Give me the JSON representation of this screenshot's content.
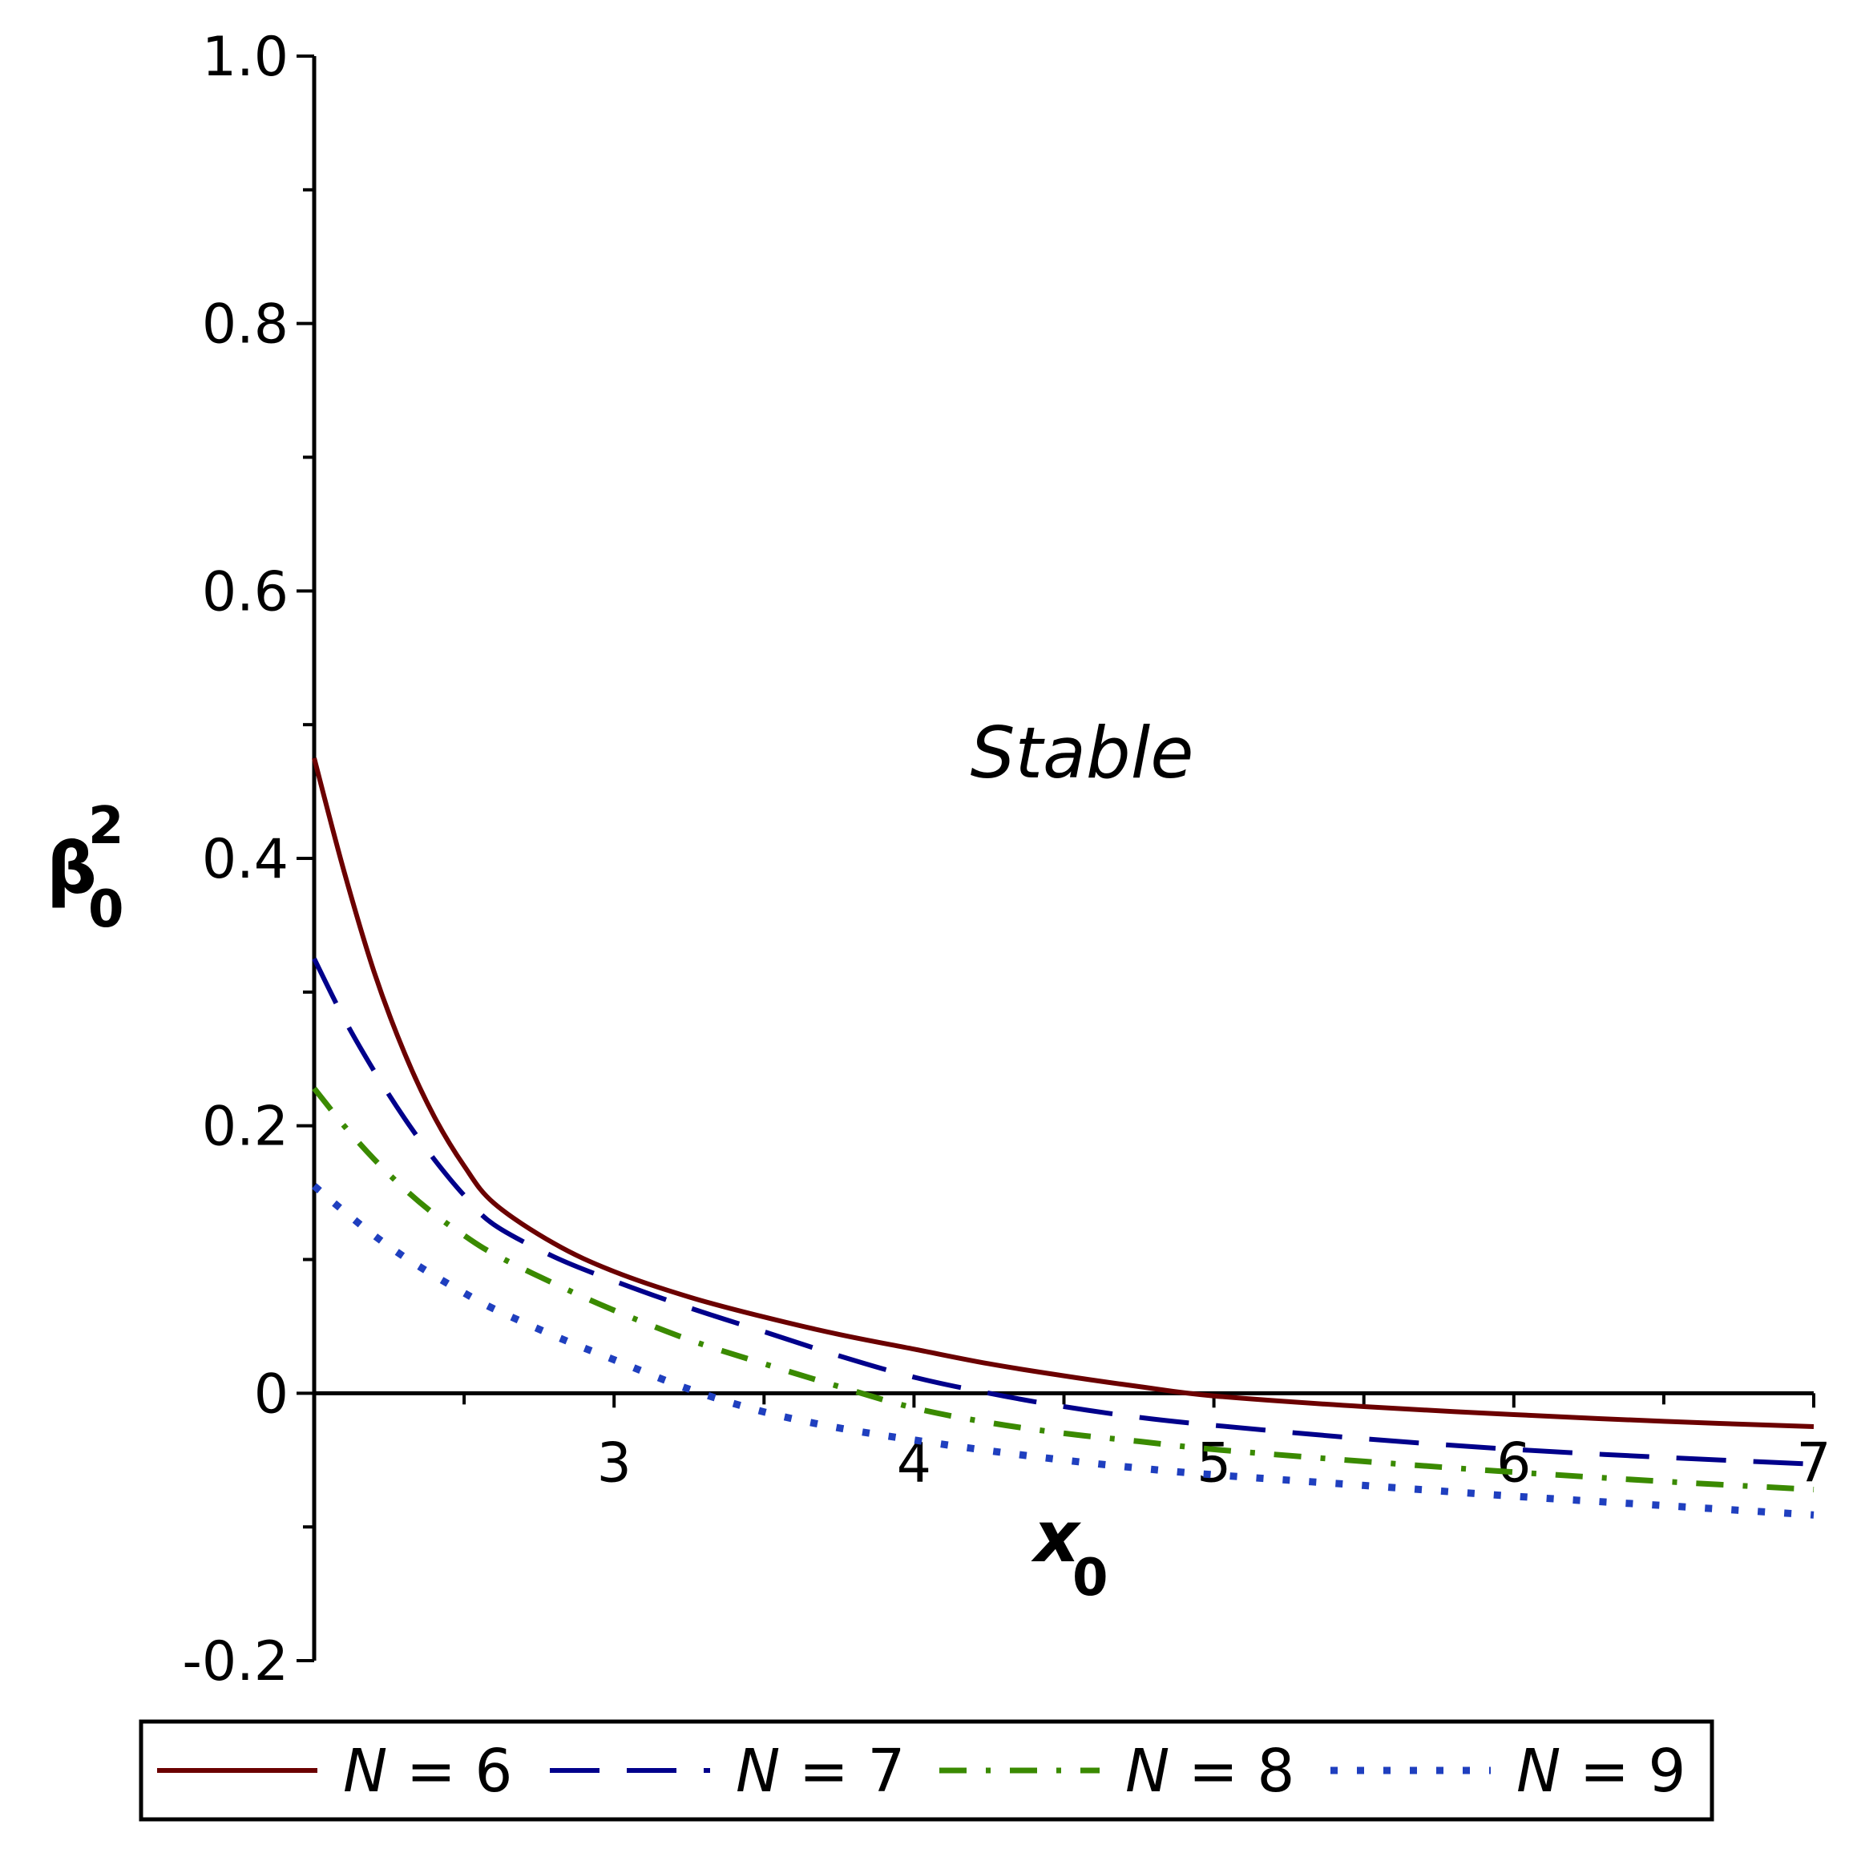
{
  "chart_data": {
    "type": "line",
    "xlabel": "x",
    "xlabel_sub": "0",
    "ylabel": "β",
    "ylabel_sup": "2",
    "ylabel_sub": "0",
    "xlim": [
      2.0,
      7.0
    ],
    "ylim": [
      -0.2,
      1.0
    ],
    "x_ticks": [
      3,
      4,
      5,
      6,
      7
    ],
    "x_ticks_minor": [
      2.5,
      3.5,
      4.5,
      5.5,
      6.5
    ],
    "y_ticks": [
      {
        "value": -0.2,
        "label": "-0.2"
      },
      {
        "value": 0,
        "label": "0"
      },
      {
        "value": 0.2,
        "label": "0.2"
      },
      {
        "value": 0.4,
        "label": "0.4"
      },
      {
        "value": 0.6,
        "label": "0.6"
      },
      {
        "value": 0.8,
        "label": "0.8"
      },
      {
        "value": 1.0,
        "label": "1.0"
      }
    ],
    "y_ticks_minor": [
      -0.1,
      0.1,
      0.3,
      0.5,
      0.7,
      0.9
    ],
    "grid": false,
    "legend_position": "bottom",
    "annotation": "Stable",
    "series": [
      {
        "name": "N = 6",
        "color": "#6b0000",
        "style": "solid",
        "x": [
          2.0,
          2.1,
          2.2,
          2.3,
          2.4,
          2.5,
          2.6,
          2.8,
          3.0,
          3.25,
          3.5,
          3.75,
          4.0,
          4.25,
          4.5,
          4.75,
          5.0,
          5.5,
          6.0,
          6.5,
          7.0
        ],
        "y": [
          0.475,
          0.39,
          0.315,
          0.255,
          0.207,
          0.17,
          0.142,
          0.112,
          0.091,
          0.072,
          0.057,
          0.044,
          0.033,
          0.022,
          0.013,
          0.005,
          -0.002,
          -0.01,
          -0.016,
          -0.021,
          -0.025
        ]
      },
      {
        "name": "N = 7",
        "color": "#00008b",
        "style": "longdash",
        "x": [
          2.0,
          2.1,
          2.2,
          2.3,
          2.4,
          2.5,
          2.6,
          2.8,
          3.0,
          3.25,
          3.5,
          3.75,
          4.0,
          4.25,
          4.5,
          4.75,
          5.0,
          5.5,
          6.0,
          6.5,
          7.0
        ],
        "y": [
          0.325,
          0.28,
          0.241,
          0.206,
          0.175,
          0.148,
          0.126,
          0.102,
          0.084,
          0.064,
          0.046,
          0.028,
          0.012,
          0.0,
          -0.01,
          -0.018,
          -0.024,
          -0.034,
          -0.042,
          -0.048,
          -0.053
        ]
      },
      {
        "name": "N = 8",
        "color": "#3a8a00",
        "style": "dashdot",
        "x": [
          2.0,
          2.1,
          2.2,
          2.3,
          2.4,
          2.5,
          2.6,
          2.8,
          3.0,
          3.25,
          3.5,
          3.75,
          4.0,
          4.25,
          4.5,
          4.75,
          5.0,
          5.5,
          6.0,
          6.5,
          7.0
        ],
        "y": [
          0.228,
          0.2,
          0.175,
          0.153,
          0.134,
          0.118,
          0.104,
          0.082,
          0.062,
          0.04,
          0.022,
          0.005,
          -0.011,
          -0.022,
          -0.03,
          -0.036,
          -0.042,
          -0.051,
          -0.059,
          -0.066,
          -0.072
        ]
      },
      {
        "name": "N = 9",
        "color": "#1f3fbf",
        "style": "dot",
        "x": [
          2.0,
          2.1,
          2.2,
          2.3,
          2.4,
          2.5,
          2.6,
          2.8,
          3.0,
          3.25,
          3.5,
          3.75,
          4.0,
          4.25,
          4.5,
          4.75,
          5.0,
          5.5,
          6.0,
          6.5,
          7.0
        ],
        "y": [
          0.155,
          0.136,
          0.118,
          0.102,
          0.088,
          0.075,
          0.063,
          0.043,
          0.025,
          0.003,
          -0.014,
          -0.026,
          -0.035,
          -0.043,
          -0.05,
          -0.056,
          -0.061,
          -0.069,
          -0.077,
          -0.084,
          -0.091
        ]
      }
    ]
  }
}
